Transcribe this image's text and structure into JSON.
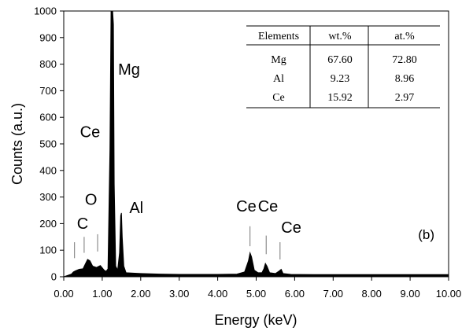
{
  "chart_data": {
    "type": "line",
    "xlabel": "Energy (keV)",
    "ylabel": "Counts (a.u.)",
    "xlim": [
      0,
      10
    ],
    "ylim": [
      0,
      1000
    ],
    "x_ticks": [
      "0.00",
      "1.00",
      "2.00",
      "3.00",
      "4.00",
      "5.00",
      "6.00",
      "7.00",
      "8.00",
      "9.00",
      "10.00"
    ],
    "y_ticks": [
      "0",
      "100",
      "200",
      "300",
      "400",
      "500",
      "600",
      "700",
      "800",
      "900",
      "1000"
    ],
    "panel_label": "(b)",
    "series": [
      {
        "x": [
          0.0,
          0.1,
          0.2,
          0.25,
          0.3,
          0.4,
          0.5,
          0.55,
          0.62,
          0.68,
          0.75,
          0.85,
          0.95,
          1.05,
          1.1,
          1.15,
          1.2,
          1.23,
          1.25,
          1.27,
          1.29,
          1.31,
          1.35,
          1.4,
          1.45,
          1.48,
          1.5,
          1.52,
          1.56,
          1.62,
          1.75,
          2.0,
          2.5,
          3.0,
          3.5,
          4.0,
          4.5,
          4.7,
          4.8,
          4.84,
          4.88,
          4.95,
          5.05,
          5.15,
          5.2,
          5.24,
          5.28,
          5.35,
          5.5,
          5.6,
          5.65,
          5.7,
          5.9,
          6.5,
          7.0,
          8.0,
          9.0,
          10.0
        ],
        "y": [
          0,
          5,
          10,
          18,
          22,
          28,
          30,
          45,
          65,
          60,
          40,
          35,
          42,
          25,
          20,
          30,
          480,
          1000,
          1000,
          1000,
          950,
          350,
          40,
          25,
          90,
          230,
          240,
          150,
          40,
          15,
          14,
          12,
          10,
          9,
          9,
          9,
          10,
          18,
          60,
          90,
          75,
          25,
          15,
          15,
          30,
          50,
          40,
          15,
          12,
          22,
          28,
          12,
          9,
          8,
          8,
          8,
          8,
          8
        ]
      }
    ],
    "peak_labels": [
      {
        "text": "Mg",
        "x": 1.25,
        "y": 760
      },
      {
        "text": "Ce",
        "x": 1.2,
        "y": 525
      },
      {
        "text": "Al",
        "x": 1.5,
        "y": 240
      },
      {
        "text": "C",
        "x": 0.28,
        "y": 180
      },
      {
        "text": "O",
        "x": 0.55,
        "y": 270
      },
      {
        "text": "Ce",
        "x": 4.85,
        "y": 245
      },
      {
        "text": "Ce",
        "x": 5.25,
        "y": 245
      },
      {
        "text": "Ce",
        "x": 5.65,
        "y": 165
      }
    ],
    "marker_lines": [
      {
        "x": 0.28,
        "y_top": 130,
        "y_bottom": 70
      },
      {
        "x": 0.53,
        "y_top": 150,
        "y_bottom": 90
      },
      {
        "x": 0.88,
        "y_top": 160,
        "y_bottom": 95
      },
      {
        "x": 4.84,
        "y_top": 190,
        "y_bottom": 115
      },
      {
        "x": 5.26,
        "y_top": 155,
        "y_bottom": 85
      },
      {
        "x": 5.62,
        "y_top": 130,
        "y_bottom": 65
      }
    ],
    "table": {
      "headers": [
        "Elements",
        "wt.%",
        "at.%"
      ],
      "rows": [
        [
          "Mg",
          "67.60",
          "72.80"
        ],
        [
          "Al",
          "9.23",
          "8.96"
        ],
        [
          "Ce",
          "15.92",
          "2.97"
        ]
      ]
    }
  }
}
